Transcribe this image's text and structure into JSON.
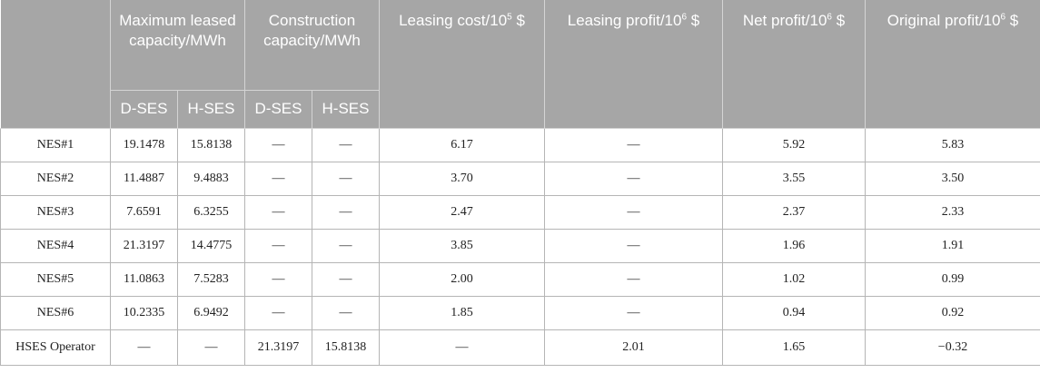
{
  "headers": {
    "blank": "",
    "max_leased": "Maximum leased capacity/MWh",
    "construction": "Construction capacity/MWh",
    "leasing_cost_text": "Leasing cost/10",
    "leasing_cost_exp": "5",
    "leasing_cost_unit": " $",
    "leasing_profit_text": "Leasing profit/10",
    "leasing_profit_exp": "6",
    "leasing_profit_unit": " $",
    "net_profit_text": "Net profit/10",
    "net_profit_exp": "6",
    "net_profit_unit": " $",
    "original_profit_text": "Original profit/10",
    "original_profit_exp": "6",
    "original_profit_unit": " $",
    "sub_dses_1": "D-SES",
    "sub_hses_1": "H-SES",
    "sub_dses_2": "D-SES",
    "sub_hses_2": "H-SES"
  },
  "rows": [
    [
      "NES#1",
      "19.1478",
      "15.8138",
      "—",
      "—",
      "6.17",
      "—",
      "5.92",
      "5.83"
    ],
    [
      "NES#2",
      "11.4887",
      "9.4883",
      "—",
      "—",
      "3.70",
      "—",
      "3.55",
      "3.50"
    ],
    [
      "NES#3",
      "7.6591",
      "6.3255",
      "—",
      "—",
      "2.47",
      "—",
      "2.37",
      "2.33"
    ],
    [
      "NES#4",
      "21.3197",
      "14.4775",
      "—",
      "—",
      "3.85",
      "—",
      "1.96",
      "1.91"
    ],
    [
      "NES#5",
      "11.0863",
      "7.5283",
      "—",
      "—",
      "2.00",
      "—",
      "1.02",
      "0.99"
    ],
    [
      "NES#6",
      "10.2335",
      "6.9492",
      "—",
      "—",
      "1.85",
      "—",
      "0.94",
      "0.92"
    ],
    [
      "HSES Operator",
      "—",
      "—",
      "21.3197",
      "15.8138",
      "—",
      "2.01",
      "1.65",
      "−0.32"
    ]
  ]
}
